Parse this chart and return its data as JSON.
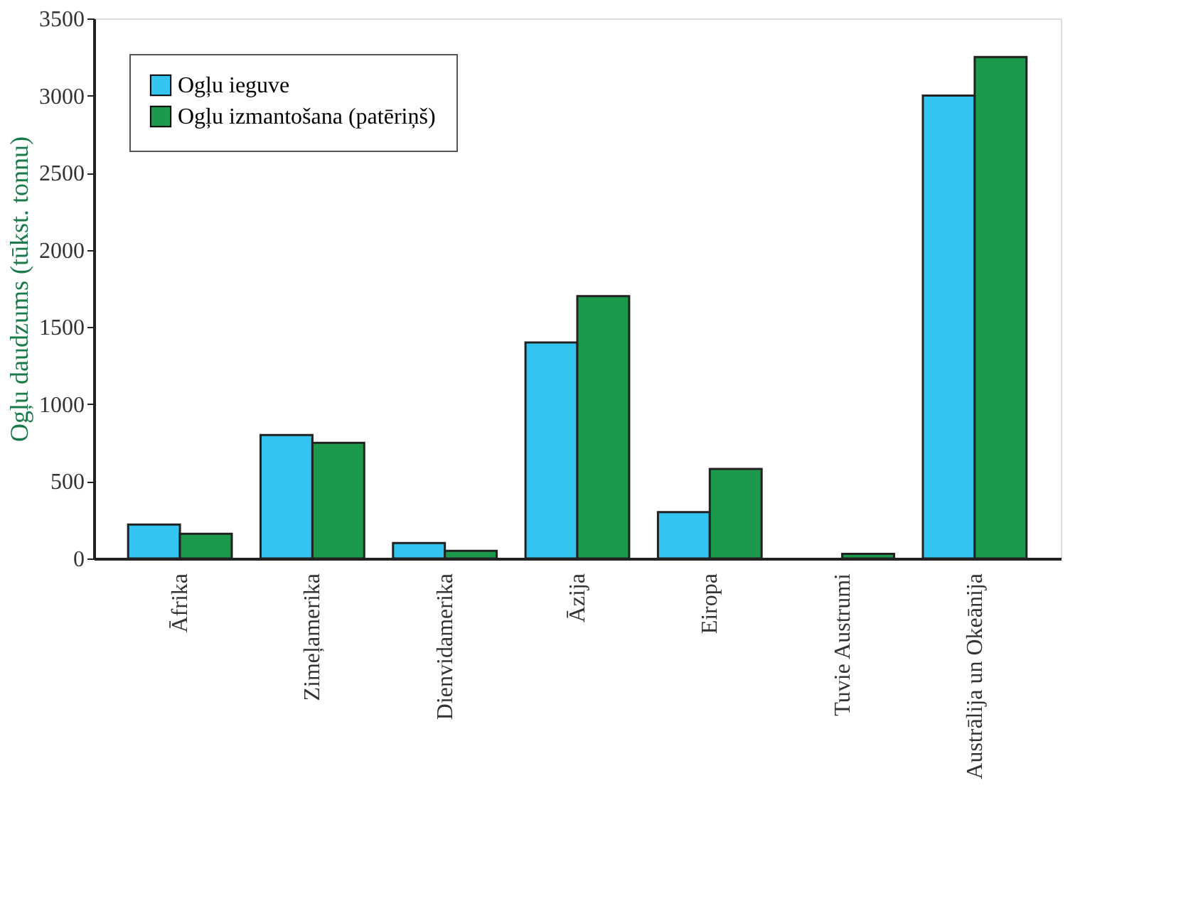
{
  "chart_data": {
    "type": "bar",
    "ylabel": "Ogļu daudzums (tūkst. tonnu)",
    "categories": [
      "Āfrika",
      "Zimeļamerika",
      "Dienvidamerika",
      "Āzija",
      "Eiropa",
      "Tuvie Austrumi",
      "Austrālija un Okeānija"
    ],
    "series": [
      {
        "name": "Ogļu ieguve",
        "color": "#33c4f0",
        "values": [
          220,
          800,
          100,
          1400,
          300,
          null,
          3000
        ]
      },
      {
        "name": "Ogļu izmantošana (patēriņš)",
        "color": "#1a9a4a",
        "values": [
          160,
          750,
          50,
          1700,
          580,
          30,
          3250
        ]
      }
    ],
    "ylim": [
      0,
      3500
    ],
    "yticks": [
      0,
      500,
      1000,
      1500,
      2000,
      2500,
      3000,
      3500
    ],
    "grid": false,
    "legend": "top left"
  }
}
